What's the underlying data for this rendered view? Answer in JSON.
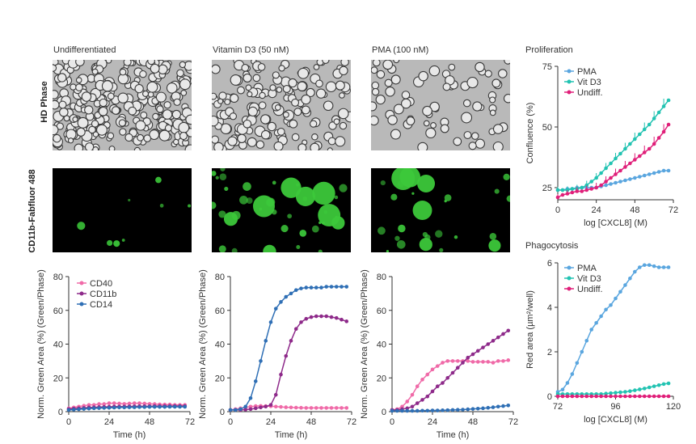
{
  "column_titles": [
    "Undifferentiated",
    "Vitamin D3 (50 nM)",
    "PMA (100 nM)"
  ],
  "row_labels": [
    "HD Phase",
    "CD11b-Fabfluor 488"
  ],
  "colors": {
    "cd40": "#f06aa8",
    "cd11b": "#8e2a8a",
    "cd14": "#2f6fb5",
    "pma": "#5aa6df",
    "vitd3": "#22c3b2",
    "undiff": "#e0207a",
    "gfp": "#3cc83a"
  },
  "chart_data": [
    {
      "id": "undiff",
      "type": "line",
      "title": "",
      "xlabel": "Time (h)",
      "ylabel": "Norm. Green Area (%) (Green/Phase)",
      "xlim": [
        0,
        72
      ],
      "ylim": [
        0,
        80
      ],
      "xticks": [
        "0",
        "24",
        "48",
        "72"
      ],
      "yticks": [
        "0",
        "20",
        "40",
        "60",
        "80"
      ],
      "legend": [
        "CD40",
        "CD11b",
        "CD14"
      ],
      "series": [
        {
          "name": "CD40",
          "color": "#f06aa8",
          "x": [
            0,
            3,
            6,
            9,
            12,
            15,
            18,
            21,
            24,
            27,
            30,
            33,
            36,
            39,
            42,
            45,
            48,
            51,
            54,
            57,
            60,
            63,
            66,
            69
          ],
          "y": [
            2,
            2.5,
            3,
            3.5,
            4,
            4,
            4.5,
            4.5,
            5,
            5,
            4.8,
            4.6,
            4.8,
            5,
            5,
            4.8,
            4.6,
            4.5,
            4.3,
            4.2,
            4.2,
            4,
            4,
            4
          ]
        },
        {
          "name": "CD11b",
          "color": "#8e2a8a",
          "x": [
            0,
            3,
            6,
            9,
            12,
            15,
            18,
            21,
            24,
            27,
            30,
            33,
            36,
            39,
            42,
            45,
            48,
            51,
            54,
            57,
            60,
            63,
            66,
            69
          ],
          "y": [
            1.5,
            1.8,
            2,
            2.2,
            2.5,
            2.6,
            2.7,
            2.8,
            2.9,
            3,
            3,
            3,
            3.1,
            3.1,
            3.2,
            3.2,
            3.2,
            3.3,
            3.3,
            3.3,
            3.3,
            3.3,
            3.3,
            3.3
          ]
        },
        {
          "name": "CD14",
          "color": "#2f6fb5",
          "x": [
            0,
            3,
            6,
            9,
            12,
            15,
            18,
            21,
            24,
            27,
            30,
            33,
            36,
            39,
            42,
            45,
            48,
            51,
            54,
            57,
            60,
            63,
            66,
            69
          ],
          "y": [
            1,
            1.2,
            1.4,
            1.6,
            1.8,
            2,
            2.1,
            2.2,
            2.3,
            2.4,
            2.5,
            2.5,
            2.6,
            2.6,
            2.7,
            2.7,
            2.8,
            2.8,
            2.8,
            2.8,
            2.9,
            2.9,
            2.9,
            2.9
          ]
        }
      ]
    },
    {
      "id": "vitd3",
      "type": "line",
      "title": "",
      "xlabel": "Time (h)",
      "ylabel": "Norm. Green Area (%) (Green/Phase)",
      "xlim": [
        0,
        72
      ],
      "ylim": [
        0,
        80
      ],
      "xticks": [
        "0",
        "24",
        "48",
        "72"
      ],
      "yticks": [
        "0",
        "20",
        "40",
        "60",
        "80"
      ],
      "legend": [],
      "series": [
        {
          "name": "CD40",
          "color": "#f06aa8",
          "x": [
            0,
            3,
            6,
            9,
            12,
            15,
            18,
            21,
            24,
            27,
            30,
            33,
            36,
            39,
            42,
            45,
            48,
            51,
            54,
            57,
            60,
            63,
            66,
            69
          ],
          "y": [
            1,
            1.5,
            2,
            2.5,
            3,
            3.3,
            3.4,
            3.3,
            3.2,
            3,
            2.8,
            2.6,
            2.5,
            2.4,
            2.3,
            2.2,
            2.2,
            2.2,
            2.2,
            2.2,
            2.2,
            2.2,
            2.2,
            2.2
          ]
        },
        {
          "name": "CD11b",
          "color": "#8e2a8a",
          "x": [
            0,
            3,
            6,
            9,
            12,
            15,
            18,
            21,
            24,
            27,
            30,
            33,
            36,
            39,
            42,
            45,
            48,
            51,
            54,
            57,
            60,
            63,
            66,
            69
          ],
          "y": [
            1,
            1,
            1,
            1.2,
            1.5,
            2,
            2.5,
            3,
            4,
            10,
            22,
            33,
            42,
            49,
            53,
            55,
            56,
            56.5,
            56.5,
            56.5,
            56,
            55.5,
            54.5,
            53.5
          ]
        },
        {
          "name": "CD14",
          "color": "#2f6fb5",
          "x": [
            0,
            3,
            6,
            9,
            12,
            15,
            18,
            21,
            24,
            27,
            30,
            33,
            36,
            39,
            42,
            45,
            48,
            51,
            54,
            57,
            60,
            63,
            66,
            69
          ],
          "y": [
            1,
            1,
            1.5,
            3,
            8,
            18,
            30,
            42,
            53,
            61,
            65,
            68,
            70,
            72,
            73,
            73.5,
            73.5,
            73.5,
            73.5,
            74,
            74,
            74,
            74,
            74
          ]
        }
      ]
    },
    {
      "id": "pma",
      "type": "line",
      "title": "",
      "xlabel": "Time (h)",
      "ylabel": "Norm. Green Area (%) (Green/Phase)",
      "xlim": [
        0,
        72
      ],
      "ylim": [
        0,
        80
      ],
      "xticks": [
        "0",
        "24",
        "48",
        "72"
      ],
      "yticks": [
        "0",
        "20",
        "40",
        "60",
        "80"
      ],
      "legend": [],
      "series": [
        {
          "name": "CD40",
          "color": "#f06aa8",
          "x": [
            0,
            3,
            6,
            9,
            12,
            15,
            18,
            21,
            24,
            27,
            30,
            33,
            36,
            39,
            42,
            45,
            48,
            51,
            54,
            57,
            60,
            63,
            66,
            69
          ],
          "y": [
            1,
            1.5,
            3,
            6,
            10,
            15,
            19,
            22,
            25,
            27,
            29,
            30,
            30,
            30,
            30,
            30,
            29.5,
            29.5,
            29.5,
            29.5,
            29,
            30,
            30,
            30.5
          ]
        },
        {
          "name": "CD11b",
          "color": "#8e2a8a",
          "x": [
            0,
            3,
            6,
            9,
            12,
            15,
            18,
            21,
            24,
            27,
            30,
            33,
            36,
            39,
            42,
            45,
            48,
            51,
            54,
            57,
            60,
            63,
            66,
            69
          ],
          "y": [
            1,
            1,
            1.5,
            2,
            3,
            5,
            7,
            9,
            12,
            15,
            17,
            20,
            23,
            26,
            29,
            32,
            34,
            36,
            38,
            40,
            42,
            44,
            46,
            48
          ]
        },
        {
          "name": "CD14",
          "color": "#2f6fb5",
          "x": [
            0,
            3,
            6,
            9,
            12,
            15,
            18,
            21,
            24,
            27,
            30,
            33,
            36,
            39,
            42,
            45,
            48,
            51,
            54,
            57,
            60,
            63,
            66,
            69
          ],
          "y": [
            0.5,
            0.5,
            0.5,
            0.5,
            0.5,
            0.5,
            0.6,
            0.6,
            0.7,
            0.7,
            0.8,
            0.9,
            1,
            1.1,
            1.2,
            1.4,
            1.6,
            1.8,
            2,
            2.3,
            2.6,
            3,
            3.3,
            3.7
          ]
        }
      ]
    },
    {
      "id": "proliferation",
      "type": "line",
      "title": "Proliferation",
      "xlabel": "log [CXCL8] (M)",
      "ylabel": "Confluence (%)",
      "xlim": [
        0,
        72
      ],
      "ylim": [
        20,
        75
      ],
      "xticks": [
        "0",
        "24",
        "48",
        "72"
      ],
      "yticks": [
        "25",
        "50",
        "75"
      ],
      "legend": [
        "PMA",
        "Vit D3",
        "Undiff."
      ],
      "series": [
        {
          "name": "PMA",
          "color": "#5aa6df",
          "x": [
            0,
            3,
            6,
            9,
            12,
            15,
            18,
            21,
            24,
            27,
            30,
            33,
            36,
            39,
            42,
            45,
            48,
            51,
            54,
            57,
            60,
            63,
            66,
            69
          ],
          "y": [
            24,
            24,
            24.5,
            24.5,
            25,
            25,
            25,
            25,
            25,
            25.5,
            26,
            26.5,
            27,
            27.5,
            28,
            28.5,
            29,
            29.5,
            30,
            30.5,
            31,
            31.5,
            32,
            32
          ]
        },
        {
          "name": "Vit D3",
          "color": "#22c3b2",
          "x": [
            0,
            3,
            6,
            9,
            12,
            15,
            18,
            21,
            24,
            27,
            30,
            33,
            36,
            39,
            42,
            45,
            48,
            51,
            54,
            57,
            60,
            63,
            66,
            69
          ],
          "y": [
            24,
            24,
            24,
            24.5,
            24.5,
            25,
            26,
            27.5,
            29,
            31,
            33,
            35,
            37,
            39,
            41,
            43,
            45,
            47,
            49,
            51,
            53.5,
            56,
            58.5,
            61
          ]
        },
        {
          "name": "Undiff.",
          "color": "#e0207a",
          "x": [
            0,
            3,
            6,
            9,
            12,
            15,
            18,
            21,
            24,
            27,
            30,
            33,
            36,
            39,
            42,
            45,
            48,
            51,
            54,
            57,
            60,
            63,
            66,
            69
          ],
          "y": [
            21,
            22,
            22.5,
            23,
            23.5,
            23.5,
            24,
            24.5,
            25,
            26,
            27.5,
            29,
            30.5,
            32,
            33.5,
            35,
            36.5,
            38,
            39.5,
            41,
            43,
            45.5,
            48,
            51
          ]
        }
      ]
    },
    {
      "id": "phagocytosis",
      "type": "line",
      "title": "Phagocytosis",
      "xlabel": "log [CXCL8] (M)",
      "ylabel": "Red area (µm²/well)",
      "xlim": [
        72,
        120
      ],
      "ylim": [
        0,
        6
      ],
      "xticks": [
        "72",
        "96",
        "120"
      ],
      "yticks": [
        "0",
        "2",
        "4",
        "6"
      ],
      "legend": [
        "PMA",
        "Vit D3",
        "Undiff."
      ],
      "series": [
        {
          "name": "PMA",
          "color": "#5aa6df",
          "x": [
            72,
            74,
            76,
            78,
            80,
            82,
            84,
            86,
            88,
            90,
            92,
            94,
            96,
            98,
            100,
            102,
            104,
            106,
            108,
            110,
            112,
            114,
            116,
            118
          ],
          "y": [
            0.2,
            0.3,
            0.6,
            1,
            1.5,
            2,
            2.5,
            3,
            3.3,
            3.6,
            3.9,
            4.1,
            4.4,
            4.7,
            5,
            5.3,
            5.6,
            5.8,
            5.9,
            5.9,
            5.85,
            5.8,
            5.8,
            5.8
          ]
        },
        {
          "name": "Vit D3",
          "color": "#22c3b2",
          "x": [
            72,
            74,
            76,
            78,
            80,
            82,
            84,
            86,
            88,
            90,
            92,
            94,
            96,
            98,
            100,
            102,
            104,
            106,
            108,
            110,
            112,
            114,
            116,
            118
          ],
          "y": [
            0.1,
            0.1,
            0.1,
            0.1,
            0.1,
            0.1,
            0.1,
            0.1,
            0.1,
            0.1,
            0.12,
            0.14,
            0.16,
            0.18,
            0.2,
            0.23,
            0.27,
            0.31,
            0.35,
            0.4,
            0.45,
            0.5,
            0.55,
            0.58
          ]
        },
        {
          "name": "Undiff.",
          "color": "#e0207a",
          "x": [
            72,
            74,
            76,
            78,
            80,
            82,
            84,
            86,
            88,
            90,
            92,
            94,
            96,
            98,
            100,
            102,
            104,
            106,
            108,
            110,
            112,
            114,
            116,
            118
          ],
          "y": [
            0,
            0,
            0,
            0,
            0,
            0,
            0,
            0,
            0,
            0,
            0,
            0,
            0,
            0,
            0,
            0,
            0,
            0,
            0,
            0,
            0,
            0,
            0,
            0
          ]
        }
      ]
    }
  ]
}
